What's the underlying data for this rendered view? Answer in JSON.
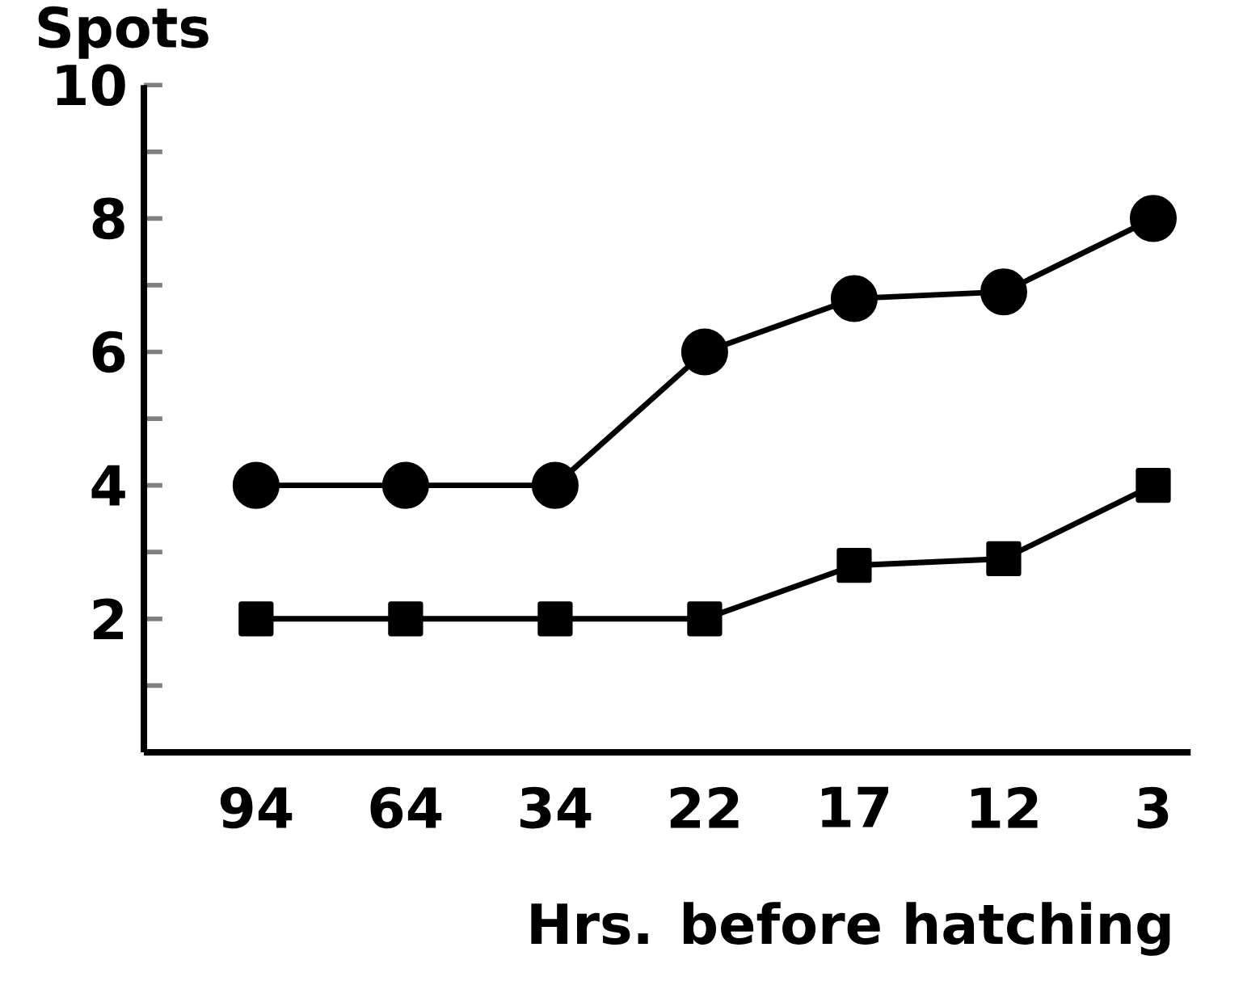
{
  "chart_data": {
    "type": "line",
    "xlabel": "Hrs. before hatching",
    "ylabel": "Spots",
    "categories": [
      "94",
      "64",
      "34",
      "22",
      "17",
      "12",
      "3"
    ],
    "ylim": [
      0,
      10
    ],
    "yticks": [
      {
        "value": 1,
        "label": null
      },
      2,
      {
        "value": 3,
        "label": null
      },
      4,
      {
        "value": 5,
        "label": null
      },
      6,
      {
        "value": 7,
        "label": null
      },
      8,
      {
        "value": 9,
        "label": null
      },
      10
    ],
    "series": [
      {
        "color": "#000000",
        "marker": "circle",
        "values": [
          4,
          4,
          4,
          6,
          6.8,
          6.9,
          8
        ]
      },
      {
        "color": "#000000",
        "marker": "square",
        "values": [
          2,
          2,
          2,
          2,
          2.8,
          2.9,
          4
        ]
      }
    ],
    "line_style": "solid"
  }
}
